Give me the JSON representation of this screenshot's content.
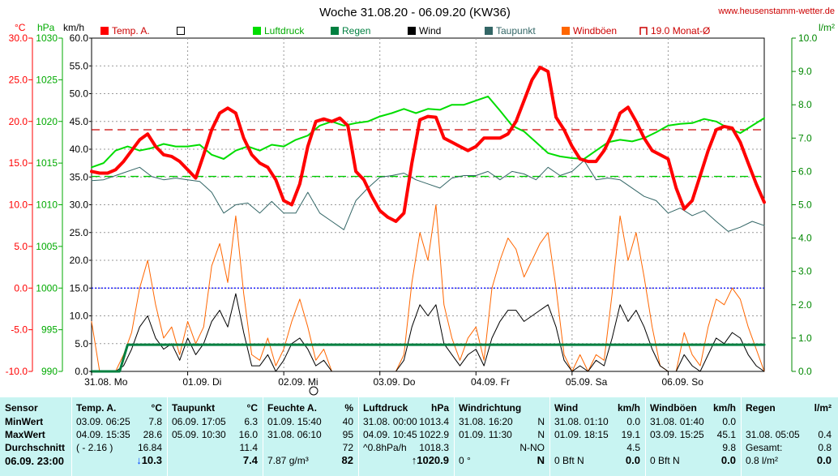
{
  "chart_data": {
    "type": "line",
    "title": "Woche 31.08.20 - 06.09.20 (KW36)",
    "site": "www.heusenstamm-wetter.de",
    "units": {
      "temp": "°C",
      "pressure": "hPa",
      "wind": "km/h",
      "rain": "l/m²"
    },
    "axes": {
      "temp": {
        "ticks": [
          "30.0",
          "25.0",
          "20.0",
          "15.0",
          "10.0",
          "5.0",
          "0.0",
          "-5.0",
          "-10.0"
        ],
        "range": [
          -10,
          30
        ],
        "color": "#ff0000"
      },
      "pressure": {
        "ticks": [
          "1030",
          "1025",
          "1020",
          "1015",
          "1010",
          "1005",
          "1000",
          "995",
          "990"
        ],
        "range": [
          990,
          1030
        ],
        "color": "#00aa00"
      },
      "wind": {
        "ticks": [
          "60.0",
          "55.0",
          "50.0",
          "45.0",
          "40.0",
          "35.0",
          "30.0",
          "25.0",
          "20.0",
          "15.0",
          "10.0",
          "5.0",
          "0.0"
        ],
        "range": [
          0,
          60
        ],
        "color": "#000000"
      },
      "rain": {
        "ticks": [
          "10.0",
          "9.0",
          "8.0",
          "7.0",
          "6.0",
          "5.0",
          "4.0",
          "3.0",
          "2.0",
          "1.0",
          "0.0"
        ],
        "range": [
          0,
          10
        ],
        "color": "#008800"
      }
    },
    "x_labels": [
      "31.08. Mo",
      "01.09. Di",
      "02.09. Mi",
      "03.09. Do",
      "04.09. Fr",
      "05.09. Sa",
      "06.09. So"
    ],
    "legend": [
      {
        "name": "Temp. A.",
        "color": "#ff0000",
        "style": "filled"
      },
      {
        "name": "",
        "color": "#000000",
        "style": "empty"
      },
      {
        "name": "Luftdruck",
        "color": "#00dd00",
        "style": "filled"
      },
      {
        "name": "Regen",
        "color": "#008040",
        "style": "filled"
      },
      {
        "name": "Wind",
        "color": "#000000",
        "style": "filled"
      },
      {
        "name": "Taupunkt",
        "color": "#336666",
        "style": "filled"
      },
      {
        "name": "Windböen",
        "color": "#ff6600",
        "style": "filled"
      },
      {
        "name": "19.0 Monat-Ø",
        "color": "#cc0000",
        "style": "bracket"
      }
    ],
    "reference_lines": [
      {
        "name": "19.0 Monat-Ø",
        "axis": "temp",
        "value": 19.0,
        "color": "#cc0000",
        "dash": "10,6"
      },
      {
        "name": "pressure-mean",
        "axis": "pressure",
        "value": 1013.4,
        "color": "#00cc00",
        "dash": "10,6"
      },
      {
        "name": "freezing",
        "axis": "temp",
        "value": 0.0,
        "color": "#0000ff",
        "dash": "2,2"
      }
    ],
    "series": [
      {
        "name": "Temp. A.",
        "axis": "temp",
        "color": "#ff0000",
        "width": 4,
        "x": [
          0,
          2,
          4,
          6,
          8,
          10,
          12,
          14,
          16,
          18,
          20,
          22,
          24,
          26,
          28,
          30,
          32,
          34,
          36,
          38,
          40,
          42,
          44,
          46,
          48,
          50,
          52,
          54,
          56,
          58,
          60,
          62,
          64,
          66,
          68,
          70,
          72,
          74,
          76,
          78,
          80,
          82,
          84,
          86,
          88,
          90,
          92,
          94,
          96,
          98,
          100,
          102,
          104,
          106,
          108,
          110,
          112,
          114,
          116,
          118,
          120,
          122,
          124,
          126,
          128,
          130,
          132,
          134,
          136,
          138,
          140,
          142,
          144,
          146,
          148,
          150,
          152,
          154,
          156,
          158,
          160,
          162,
          164,
          166,
          168
        ],
        "y": [
          14.0,
          13.8,
          13.8,
          14.2,
          15.2,
          16.5,
          17.8,
          18.5,
          17.0,
          16.0,
          15.8,
          15.2,
          14.2,
          13.2,
          16.0,
          19.0,
          21.0,
          21.6,
          21.0,
          18.0,
          16.0,
          15.0,
          14.5,
          13.0,
          10.5,
          10.0,
          12.5,
          17.0,
          20.0,
          20.3,
          20.0,
          20.4,
          19.5,
          14.0,
          13.0,
          11.0,
          9.3,
          8.5,
          8.0,
          9.0,
          15.0,
          20.2,
          20.6,
          20.5,
          18.0,
          17.5,
          17.0,
          16.5,
          17.0,
          18.0,
          18.0,
          18.0,
          18.5,
          20.0,
          22.5,
          25.0,
          26.5,
          26.0,
          20.5,
          19.0,
          17.0,
          15.5,
          15.2,
          15.2,
          16.5,
          18.5,
          21.0,
          21.7,
          20.0,
          18.0,
          16.5,
          16.0,
          15.5,
          12.0,
          9.5,
          10.5,
          13.5,
          16.5,
          19.0,
          19.4,
          19.2,
          17.5,
          15.0,
          12.5,
          10.3
        ]
      },
      {
        "name": "Luftdruck",
        "axis": "pressure",
        "color": "#00dd00",
        "width": 2,
        "x": [
          0,
          3,
          6,
          9,
          12,
          15,
          18,
          21,
          24,
          27,
          30,
          33,
          36,
          39,
          42,
          45,
          48,
          51,
          54,
          57,
          60,
          63,
          66,
          69,
          72,
          75,
          78,
          81,
          84,
          87,
          90,
          93,
          96,
          99,
          102,
          105,
          108,
          111,
          114,
          117,
          120,
          123,
          126,
          129,
          132,
          135,
          138,
          141,
          144,
          147,
          150,
          153,
          156,
          159,
          162,
          165,
          168
        ],
        "y": [
          1014.5,
          1015.0,
          1016.5,
          1017.0,
          1016.5,
          1016.8,
          1017.3,
          1017.0,
          1017.0,
          1017.2,
          1016.0,
          1015.5,
          1016.5,
          1017.0,
          1016.5,
          1017.2,
          1017.0,
          1017.8,
          1018.3,
          1019.5,
          1020.0,
          1019.5,
          1019.8,
          1020.0,
          1020.6,
          1021.0,
          1021.5,
          1021.0,
          1021.5,
          1021.4,
          1022.0,
          1022.0,
          1022.5,
          1023.0,
          1021.3,
          1019.5,
          1018.8,
          1017.5,
          1016.2,
          1015.8,
          1015.6,
          1015.5,
          1016.5,
          1017.5,
          1017.8,
          1017.6,
          1018.0,
          1018.7,
          1019.5,
          1019.7,
          1019.8,
          1020.3,
          1020.0,
          1019.2,
          1018.6,
          1019.5,
          1020.4
        ]
      },
      {
        "name": "Taupunkt",
        "axis": "temp",
        "color": "#336666",
        "width": 1,
        "x": [
          0,
          3,
          6,
          9,
          12,
          15,
          18,
          21,
          24,
          27,
          30,
          33,
          36,
          39,
          42,
          45,
          48,
          51,
          54,
          57,
          60,
          63,
          66,
          69,
          72,
          75,
          78,
          81,
          84,
          87,
          90,
          93,
          96,
          99,
          102,
          105,
          108,
          111,
          114,
          117,
          120,
          123,
          126,
          129,
          132,
          135,
          138,
          141,
          144,
          147,
          150,
          153,
          156,
          159,
          162,
          165,
          168
        ],
        "y": [
          12.9,
          13.0,
          13.5,
          14.0,
          14.5,
          13.4,
          13.0,
          13.2,
          13.0,
          12.8,
          11.5,
          9.0,
          10.0,
          10.2,
          9.0,
          10.4,
          9.0,
          9.0,
          11.5,
          9.0,
          8.0,
          7.0,
          10.5,
          12.0,
          13.3,
          13.5,
          13.8,
          13.0,
          12.5,
          12.0,
          13.2,
          13.5,
          13.5,
          14.0,
          13.0,
          14.0,
          13.7,
          13.0,
          14.5,
          13.5,
          14.0,
          15.3,
          13.0,
          13.2,
          13.0,
          12.0,
          11.0,
          10.5,
          9.0,
          9.6,
          8.7,
          9.3,
          8.0,
          6.8,
          7.3,
          8.0,
          7.5
        ]
      },
      {
        "name": "Windböen",
        "axis": "wind",
        "color": "#ff6600",
        "width": 1,
        "x": [
          0,
          2,
          4,
          6,
          8,
          10,
          12,
          14,
          16,
          18,
          20,
          22,
          24,
          26,
          28,
          30,
          32,
          34,
          36,
          38,
          40,
          42,
          44,
          46,
          48,
          50,
          52,
          54,
          56,
          58,
          60,
          62,
          64,
          66,
          68,
          70,
          72,
          74,
          76,
          78,
          80,
          82,
          84,
          86,
          88,
          90,
          92,
          94,
          96,
          98,
          100,
          102,
          104,
          106,
          108,
          110,
          112,
          114,
          116,
          118,
          120,
          122,
          124,
          126,
          128,
          130,
          132,
          134,
          136,
          138,
          140,
          142,
          144,
          146,
          148,
          150,
          152,
          154,
          156,
          158,
          160,
          162,
          164,
          166,
          168
        ],
        "y": [
          9,
          0,
          0,
          0,
          3,
          7,
          15,
          20,
          12,
          6,
          8,
          3,
          9,
          5,
          8,
          19,
          23,
          16,
          28,
          14,
          3,
          2,
          6,
          1,
          4,
          9,
          13,
          8,
          2,
          4,
          0,
          0,
          0,
          0,
          0,
          0,
          0,
          0,
          0,
          3,
          16,
          25,
          20,
          30,
          12,
          6,
          2,
          6,
          8,
          2,
          15,
          20,
          24,
          22,
          17,
          20,
          23,
          25,
          15,
          3,
          0,
          3,
          0,
          3,
          2,
          14,
          28,
          20,
          25,
          17,
          8,
          1,
          0,
          0,
          7,
          3,
          1,
          8,
          13,
          12,
          15,
          13,
          8,
          4,
          0
        ],
        "color_fill": ""
      },
      {
        "name": "Wind",
        "axis": "wind",
        "color": "#000000",
        "width": 1,
        "x": [
          0,
          2,
          4,
          6,
          8,
          10,
          12,
          14,
          16,
          18,
          20,
          22,
          24,
          26,
          28,
          30,
          32,
          34,
          36,
          38,
          40,
          42,
          44,
          46,
          48,
          50,
          52,
          54,
          56,
          58,
          60,
          62,
          64,
          66,
          68,
          70,
          72,
          74,
          76,
          78,
          80,
          82,
          84,
          86,
          88,
          90,
          92,
          94,
          96,
          98,
          100,
          102,
          104,
          106,
          108,
          110,
          112,
          114,
          116,
          118,
          120,
          122,
          124,
          126,
          128,
          130,
          132,
          134,
          136,
          138,
          140,
          142,
          144,
          146,
          148,
          150,
          152,
          154,
          156,
          158,
          160,
          162,
          164,
          166,
          168
        ],
        "y": [
          0,
          0,
          0,
          0,
          1,
          4,
          8,
          10,
          6,
          4,
          5,
          2,
          6,
          3,
          5,
          9,
          11,
          8,
          14,
          7,
          1,
          1,
          3,
          0,
          2,
          5,
          6,
          4,
          1,
          2,
          0,
          0,
          0,
          0,
          0,
          0,
          0,
          0,
          0,
          2,
          8,
          12,
          10,
          12,
          5,
          3,
          1,
          3,
          4,
          1,
          6,
          9,
          11,
          11,
          9,
          10,
          11,
          12,
          8,
          2,
          0,
          1,
          0,
          2,
          1,
          6,
          12,
          9,
          11,
          8,
          4,
          1,
          0,
          0,
          3,
          1,
          0,
          3,
          6,
          5,
          7,
          6,
          3,
          1,
          0
        ]
      },
      {
        "name": "Regen",
        "axis": "rain",
        "color": "#008040",
        "width": 3,
        "x": [
          0,
          3,
          5,
          7,
          9,
          20,
          40,
          60,
          80,
          100,
          120,
          140,
          168
        ],
        "y": [
          0.0,
          0.0,
          0.0,
          0.0,
          0.8,
          0.8,
          0.8,
          0.8,
          0.8,
          0.8,
          0.8,
          0.8,
          0.8
        ]
      }
    ]
  },
  "stats": {
    "row_labels": {
      "min": "MinWert",
      "max": "MaxWert",
      "avg": "Durchschnitt",
      "current": "06.09. 23:00"
    },
    "sensor_label": "Sensor",
    "columns": [
      {
        "name": "Temp. A.",
        "unit": "°C",
        "min_date": "03.09.",
        "min_time": "06:25",
        "min_val": "7.8",
        "max_date": "04.09.",
        "max_time": "15:35",
        "max_val": "28.6",
        "avg_note": "( - 2.16 )",
        "avg_val": "16.84",
        "current": "↓10.3"
      },
      {
        "name": "Taupunkt",
        "unit": "°C",
        "min_date": "06.09.",
        "min_time": "17:05",
        "min_val": "6.3",
        "max_date": "05.09.",
        "max_time": "10:30",
        "max_val": "16.0",
        "avg_note": "",
        "avg_val": "11.4",
        "current": "7.4"
      },
      {
        "name": "Feuchte A.",
        "unit": "%",
        "min_date": "01.09.",
        "min_time": "15:40",
        "min_val": "40",
        "max_date": "31.08.",
        "max_time": "06:10",
        "max_val": "95",
        "avg_note": "",
        "avg_val": "72",
        "current_note": "7.87 g/m³",
        "current": "82"
      },
      {
        "name": "Luftdruck",
        "unit": "hPa",
        "min_date": "31.08.",
        "min_time": "00:00",
        "min_val": "1013.4",
        "max_date": "04.09.",
        "max_time": "10:45",
        "max_val": "1022.9",
        "avg_note": "^0.8hPa/h",
        "avg_val": "1018.3",
        "current": "↑1020.9"
      },
      {
        "name": "Windrichtung",
        "unit": "",
        "min_date": "31.08.",
        "min_time": "16:20",
        "min_val": "N",
        "max_date": "01.09.",
        "max_time": "11:30",
        "max_val": "N",
        "avg_note": "",
        "avg_val": "N-NO",
        "current_note": "0 °",
        "current": "N"
      },
      {
        "name": "Wind",
        "unit": "km/h",
        "min_date": "31.08.",
        "min_time": "01:10",
        "min_val": "0.0",
        "max_date": "01.09.",
        "max_time": "18:15",
        "max_val": "19.1",
        "avg_note": "",
        "avg_val": "4.5",
        "current_note": "0 Bft N",
        "current": "0.0"
      },
      {
        "name": "Windböen",
        "unit": "km/h",
        "min_date": "31.08.",
        "min_time": "01:40",
        "min_val": "0.0",
        "max_date": "03.09.",
        "max_time": "15:25",
        "max_val": "45.1",
        "avg_note": "",
        "avg_val": "9.8",
        "current_note": "0 Bft N",
        "current": "0.0"
      },
      {
        "name": "Regen",
        "unit": "l/m²",
        "min_date": "",
        "min_time": "",
        "min_val": "",
        "max_date": "31.08.",
        "max_time": "05:05",
        "max_val": "0.4",
        "avg_note": "Gesamt:",
        "avg_val": "0.8",
        "current_note": "0.8 l/m²",
        "current": "0.0"
      }
    ]
  }
}
